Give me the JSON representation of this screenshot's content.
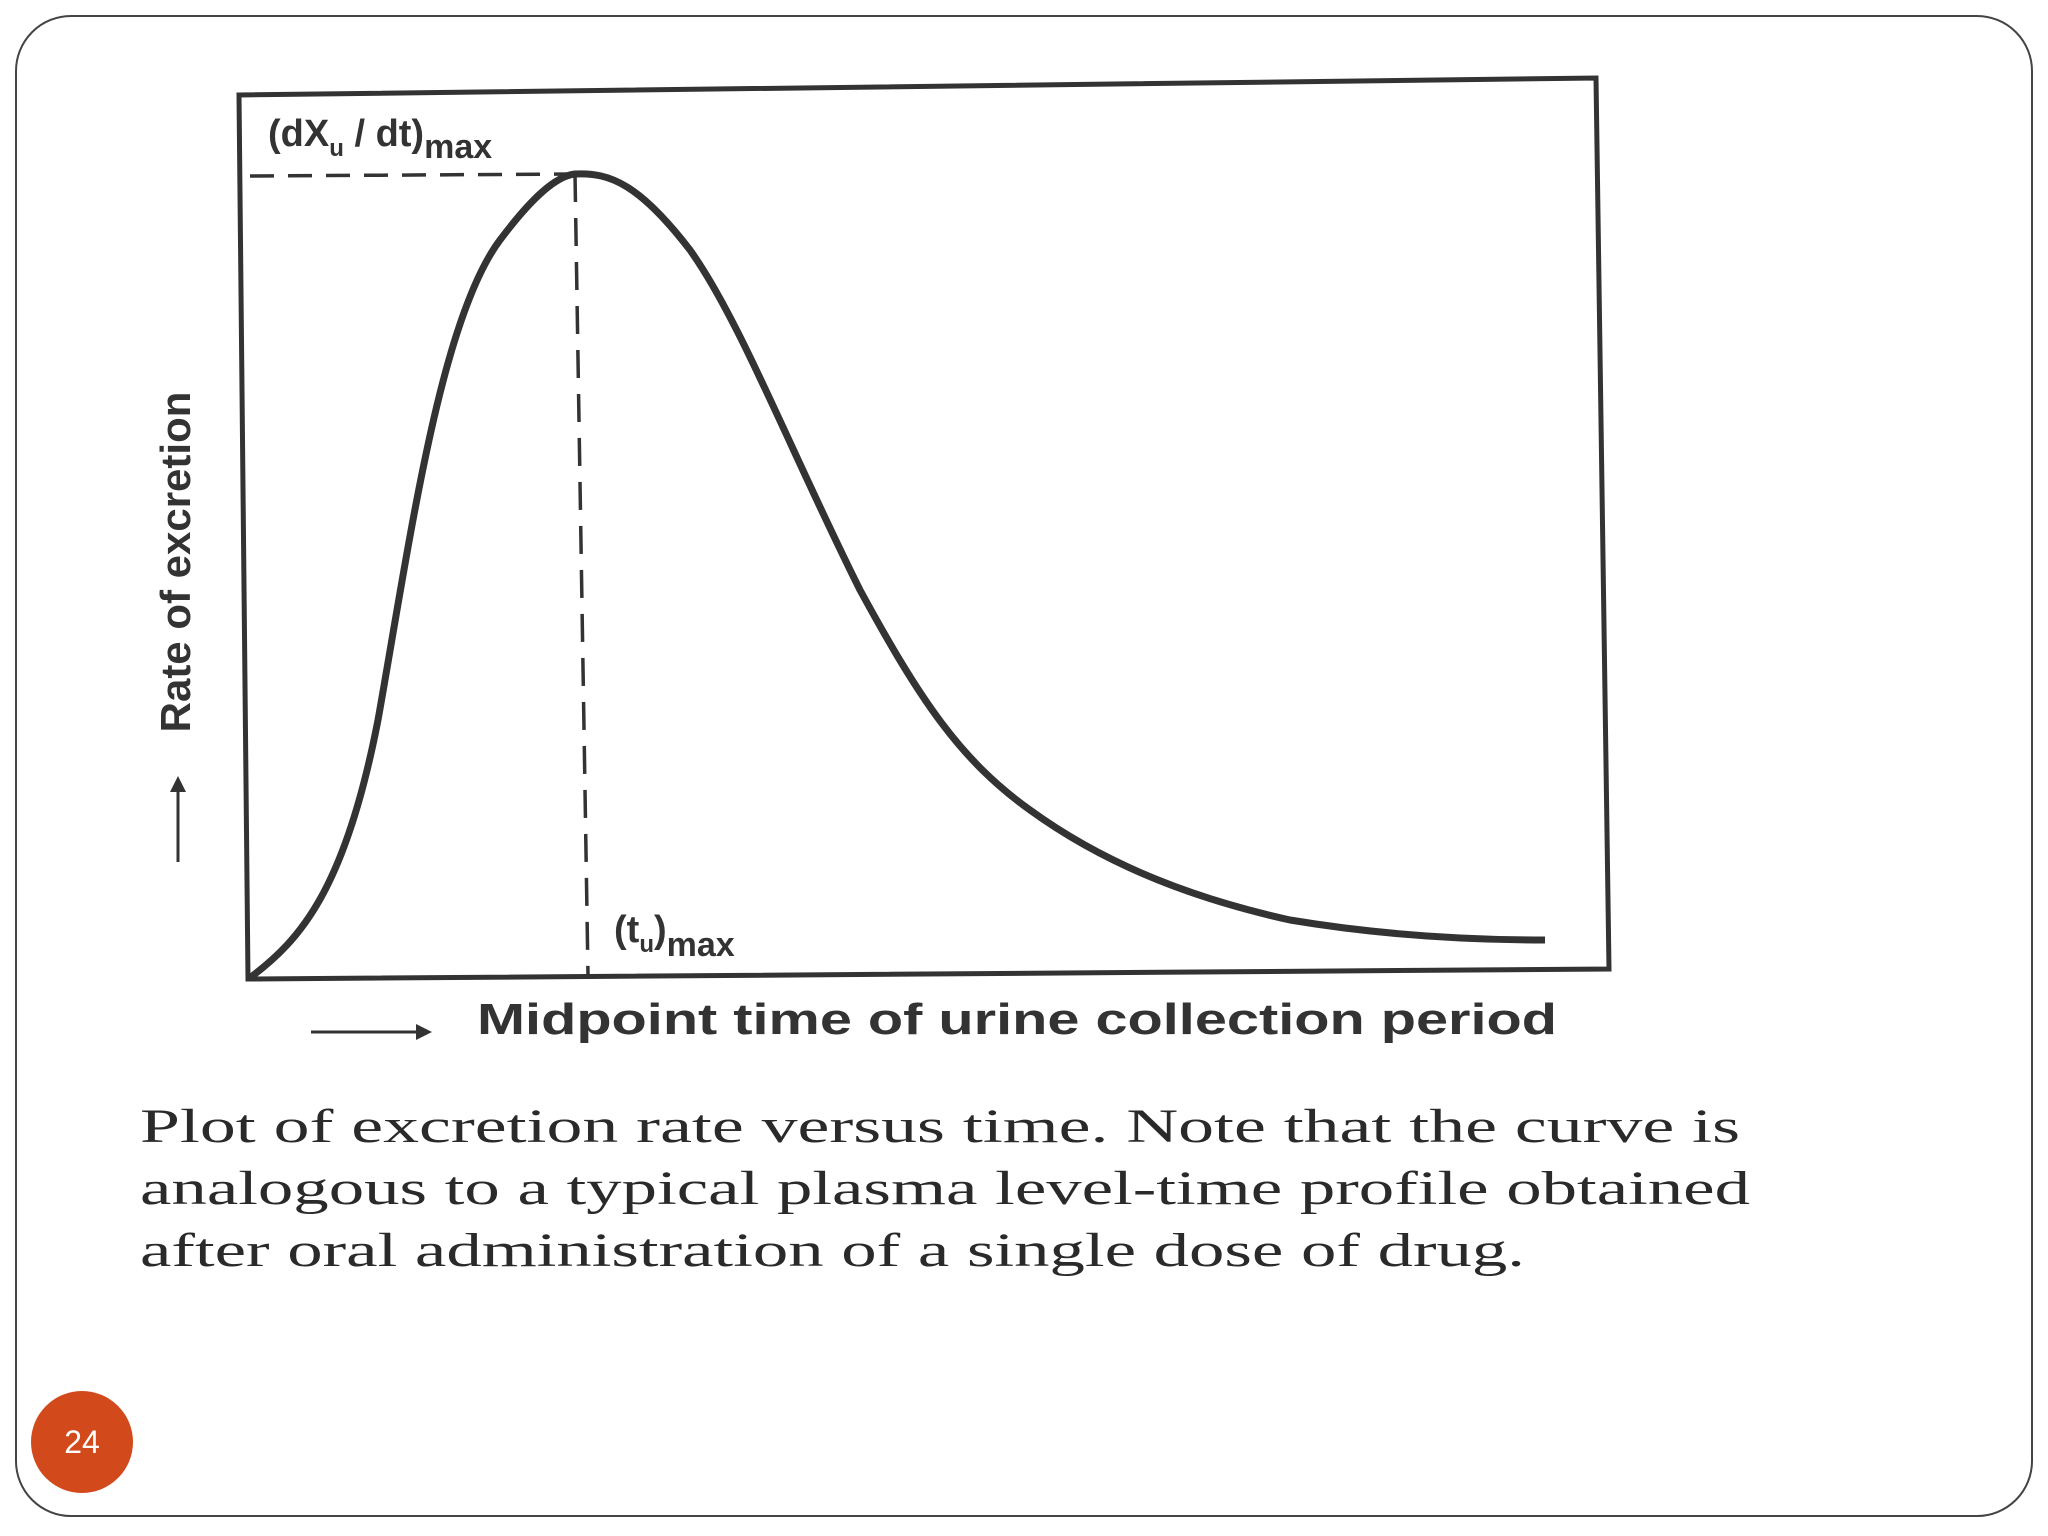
{
  "figure": {
    "y_axis_label": "Rate of excretion",
    "x_axis_label": "Midpoint time of urine collection period",
    "peak_label": {
      "main": "(dX",
      "sub": "u",
      "rest": " / dt)",
      "subscript": "max"
    },
    "time_label": {
      "main": "(t",
      "sub": "u",
      "rest": ")",
      "subscript": "max"
    }
  },
  "caption": {
    "lines": [
      "Plot of excretion rate versus time.  Note that the curve is",
      "analogous to a typical plasma level-time profile obtained",
      "after oral administration of a single dose of drug."
    ]
  },
  "page_number": "24"
}
